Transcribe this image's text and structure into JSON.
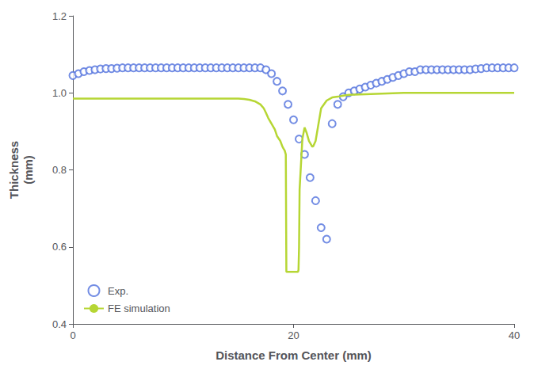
{
  "chart_data": {
    "type": "line",
    "xlabel": "Distance From Center (mm)",
    "ylabel": "Thickness\n(mm)",
    "xlim": [
      0,
      40
    ],
    "ylim": [
      0.4,
      1.2
    ],
    "xticks": [
      0,
      20,
      40
    ],
    "yticks": [
      0.4,
      0.6,
      0.8,
      {
        "value": 1.0,
        "label": "1.0"
      },
      1.2
    ],
    "grid": false,
    "legend": "lower left",
    "series": [
      {
        "name": "Exp.",
        "type": "scatter",
        "marker": "circle",
        "x": [
          0.0,
          0.5,
          1.0,
          1.5,
          2.0,
          2.5,
          3.0,
          3.5,
          4.0,
          4.5,
          5.0,
          5.5,
          6.0,
          6.5,
          7.0,
          7.5,
          8.0,
          8.5,
          9.0,
          9.5,
          10.0,
          10.5,
          11.0,
          11.5,
          12.0,
          12.5,
          13.0,
          13.5,
          14.0,
          14.5,
          15.0,
          15.5,
          16.0,
          16.5,
          17.0,
          17.5,
          18.0,
          18.5,
          19.0,
          19.5,
          20.0,
          20.5,
          21.0,
          21.5,
          22.0,
          22.5,
          23.0,
          23.5,
          24.0,
          24.5,
          25.0,
          25.5,
          26.0,
          26.5,
          27.0,
          27.5,
          28.0,
          28.5,
          29.0,
          29.5,
          30.0,
          30.5,
          31.0,
          31.5,
          32.0,
          32.5,
          33.0,
          33.5,
          34.0,
          34.5,
          35.0,
          35.5,
          36.0,
          36.5,
          37.0,
          37.5,
          38.0,
          38.5,
          39.0,
          39.5,
          40.0
        ],
        "values": [
          1.045,
          1.05,
          1.055,
          1.058,
          1.06,
          1.062,
          1.063,
          1.063,
          1.064,
          1.065,
          1.065,
          1.065,
          1.065,
          1.065,
          1.065,
          1.065,
          1.065,
          1.065,
          1.065,
          1.065,
          1.065,
          1.065,
          1.065,
          1.065,
          1.065,
          1.065,
          1.065,
          1.065,
          1.065,
          1.065,
          1.065,
          1.065,
          1.065,
          1.065,
          1.065,
          1.06,
          1.05,
          1.03,
          1.005,
          0.97,
          0.93,
          0.88,
          0.84,
          0.78,
          0.72,
          0.65,
          0.62,
          0.92,
          0.97,
          0.99,
          1.0,
          1.005,
          1.01,
          1.015,
          1.02,
          1.025,
          1.03,
          1.035,
          1.04,
          1.045,
          1.05,
          1.055,
          1.055,
          1.06,
          1.06,
          1.06,
          1.06,
          1.06,
          1.06,
          1.06,
          1.06,
          1.06,
          1.06,
          1.062,
          1.063,
          1.065,
          1.065,
          1.065,
          1.065,
          1.065,
          1.065
        ]
      },
      {
        "name": "FE simulation",
        "type": "line",
        "line_style": "solid",
        "x": [
          0.0,
          1.0,
          2.0,
          3.0,
          4.0,
          5.0,
          6.0,
          7.0,
          8.0,
          9.0,
          10.0,
          11.0,
          12.0,
          13.0,
          14.0,
          15.0,
          15.5,
          16.0,
          16.5,
          17.0,
          17.3,
          17.5,
          17.7,
          18.0,
          18.3,
          18.5,
          18.8,
          19.0,
          19.1,
          19.2,
          19.3,
          19.35,
          19.4,
          19.45,
          19.5,
          20.4,
          20.45,
          20.5,
          20.55,
          20.8,
          21.0,
          21.2,
          21.4,
          21.6,
          21.7,
          21.8,
          22.0,
          22.5,
          23.0,
          23.5,
          24.0,
          24.5,
          25.0,
          26.0,
          27.0,
          28.0,
          29.0,
          30.0,
          31.0,
          32.0,
          33.0,
          34.0,
          35.0,
          36.0,
          37.0,
          38.0,
          39.0,
          40.0
        ],
        "values": [
          0.985,
          0.985,
          0.985,
          0.985,
          0.985,
          0.985,
          0.985,
          0.985,
          0.985,
          0.985,
          0.985,
          0.985,
          0.985,
          0.985,
          0.985,
          0.985,
          0.984,
          0.982,
          0.978,
          0.97,
          0.96,
          0.948,
          0.935,
          0.92,
          0.905,
          0.888,
          0.875,
          0.86,
          0.855,
          0.85,
          0.84,
          0.535,
          0.535,
          0.535,
          0.535,
          0.535,
          0.54,
          0.6,
          0.75,
          0.88,
          0.91,
          0.895,
          0.875,
          0.865,
          0.86,
          0.862,
          0.875,
          0.96,
          0.98,
          0.988,
          0.99,
          0.993,
          0.995,
          0.996,
          0.997,
          0.998,
          0.999,
          1.0,
          1.0,
          1.0,
          1.0,
          1.0,
          1.0,
          1.0,
          1.0,
          1.0,
          1.0,
          1.0
        ]
      }
    ]
  }
}
